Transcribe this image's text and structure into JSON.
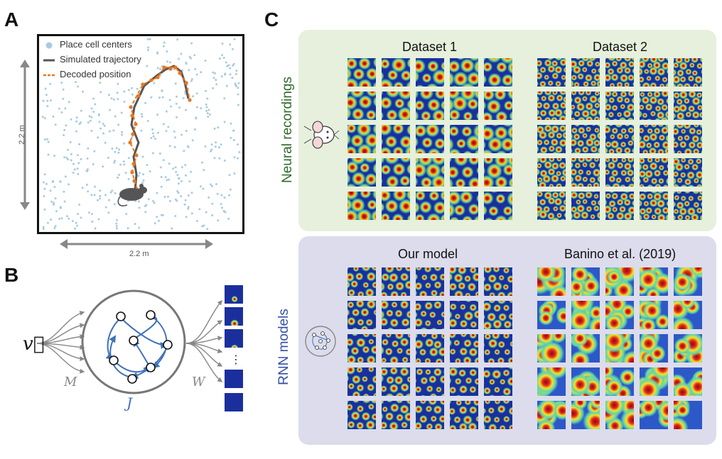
{
  "panel_a": {
    "letter": "A",
    "legend": {
      "place_cells": "Place cell centers",
      "trajectory": "Simulated trajectory",
      "decoded": "Decoded position"
    },
    "height_label": "2.2 m",
    "width_label": "2.2 m"
  },
  "panel_b": {
    "letter": "B",
    "input_label": "v⃗",
    "input_weight": "M",
    "recurrent_weight": "J",
    "output_weight": "W",
    "ellipsis": "⋮"
  },
  "panel_c": {
    "letter": "C",
    "top_row_label": "Neural recordings",
    "bottom_row_label": "RNN models",
    "top_columns": [
      "Dataset 1",
      "Dataset 2"
    ],
    "bottom_columns": [
      "Our model",
      "Banino et al. (2019)"
    ]
  },
  "colors": {
    "place_cell": "#a9cbe0",
    "trajectory": "#555555",
    "decoded": "#e8771f",
    "network_blue": "#3f72b8",
    "neural_green": "#2f6a2a",
    "rnn_blue": "#3550a6",
    "top_bg": "#e6f0dc",
    "bottom_bg": "#dcdcec"
  }
}
